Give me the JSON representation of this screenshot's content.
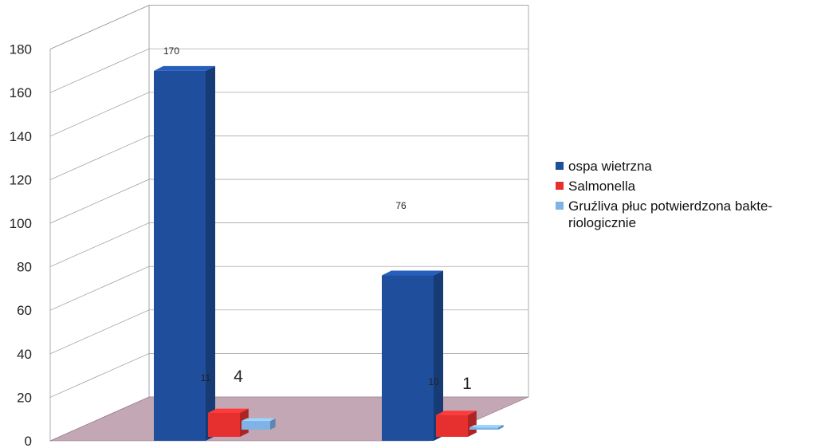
{
  "chart_data": {
    "type": "bar",
    "categories": [
      "",
      ""
    ],
    "series": [
      {
        "name": "ospa wietrzna",
        "values": [
          170,
          76
        ],
        "color": "#1f4e9c"
      },
      {
        "name": "Salmonella",
        "values": [
          11,
          10
        ],
        "color": "#e63030"
      },
      {
        "name": "Gruźliva płuc potwierdzona bakte-riologicznie",
        "values": [
          4,
          1
        ],
        "color": "#7fb3e6"
      }
    ],
    "data_labels": [
      {
        "series": 0,
        "category": 0,
        "text": "170",
        "size": "small"
      },
      {
        "series": 1,
        "category": 0,
        "text": "11",
        "size": "small"
      },
      {
        "series": 2,
        "category": 0,
        "text": "4",
        "size": "big"
      },
      {
        "series": 0,
        "category": 1,
        "text": "76",
        "size": "small"
      },
      {
        "series": 1,
        "category": 1,
        "text": "10",
        "size": "small"
      },
      {
        "series": 2,
        "category": 1,
        "text": "1",
        "size": "big"
      }
    ],
    "yticks": [
      "0",
      "20",
      "40",
      "60",
      "80",
      "100",
      "120",
      "140",
      "160",
      "180"
    ],
    "ylim": [
      0,
      180
    ],
    "title": "",
    "xlabel": "",
    "ylabel": "",
    "grid": true,
    "legend_position": "right",
    "colors": {
      "floor": "#c4a7b4",
      "grid": "#999999"
    }
  },
  "legend": {
    "items": [
      {
        "label": "ospa wietrzna",
        "color": "#1f4e9c"
      },
      {
        "label": "Salmonella",
        "color": "#e63030"
      },
      {
        "label": "Gruźliva płuc potwierdzona bakte-riologicznie",
        "color": "#7fb3e6"
      }
    ]
  }
}
